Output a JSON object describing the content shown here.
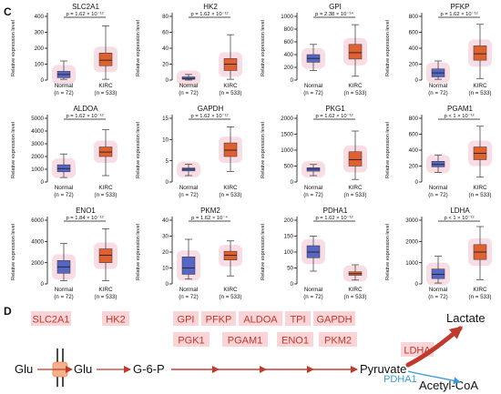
{
  "figure": {
    "panel_c_letter": "C",
    "panel_d_letter": "D"
  },
  "chart_data": [
    {
      "type": "box",
      "title": "SLC2A1",
      "significance": "p = 1.62 × 10⁻¹²",
      "ylabel": "Relative expression level",
      "ylim": [
        0,
        400
      ],
      "yticks": [
        0,
        100,
        200,
        300,
        400
      ],
      "categories": [
        "Normal",
        "KIRC"
      ],
      "n_labels": [
        "(n = 72)",
        "(n = 533)"
      ],
      "boxes": [
        {
          "min": 5,
          "q1": 15,
          "median": 35,
          "q3": 55,
          "max": 120
        },
        {
          "min": 5,
          "q1": 90,
          "median": 125,
          "q3": 170,
          "max": 340
        }
      ]
    },
    {
      "type": "box",
      "title": "HK2",
      "significance": "p = 1.62 × 10⁻¹²",
      "ylabel": "Relative expression level",
      "ylim": [
        0,
        80
      ],
      "yticks": [
        0,
        20,
        40,
        60,
        80
      ],
      "categories": [
        "Normal",
        "KIRC"
      ],
      "n_labels": [
        "(n = 72)",
        "(n = 533)"
      ],
      "boxes": [
        {
          "min": 0,
          "q1": 1,
          "median": 2,
          "q3": 4,
          "max": 7
        },
        {
          "min": 1,
          "q1": 12,
          "median": 20,
          "q3": 27,
          "max": 57
        }
      ]
    },
    {
      "type": "box",
      "title": "GPI",
      "significance": "p = 2.38 × 10⁻¹⁴",
      "ylabel": "Relative expression level",
      "ylim": [
        0,
        1000
      ],
      "yticks": [
        0,
        200,
        400,
        600,
        800,
        1000
      ],
      "categories": [
        "Normal",
        "KIRC"
      ],
      "n_labels": [
        "(n = 72)",
        "(n = 533)"
      ],
      "boxes": [
        {
          "min": 150,
          "q1": 280,
          "median": 340,
          "q3": 400,
          "max": 560
        },
        {
          "min": 60,
          "q1": 330,
          "median": 430,
          "q3": 560,
          "max": 870
        }
      ]
    },
    {
      "type": "box",
      "title": "PFKP",
      "significance": "p = 1.62 × 10⁻¹²",
      "ylabel": "Relative expression level",
      "ylim": [
        0,
        800
      ],
      "yticks": [
        0,
        200,
        400,
        600,
        800
      ],
      "categories": [
        "Normal",
        "KIRC"
      ],
      "n_labels": [
        "(n = 72)",
        "(n = 533)"
      ],
      "boxes": [
        {
          "min": 10,
          "q1": 40,
          "median": 90,
          "q3": 140,
          "max": 240
        },
        {
          "min": 20,
          "q1": 250,
          "median": 330,
          "q3": 430,
          "max": 700
        }
      ]
    },
    {
      "type": "box",
      "title": "ALDOA",
      "significance": "p = 1.62 × 10⁻¹²",
      "ylabel": "Relative expression level",
      "ylim": [
        0,
        5000
      ],
      "yticks": [
        0,
        1000,
        2000,
        3000,
        4000,
        5000
      ],
      "categories": [
        "Normal",
        "KIRC"
      ],
      "n_labels": [
        "(n = 72)",
        "(n = 533)"
      ],
      "boxes": [
        {
          "min": 350,
          "q1": 800,
          "median": 1050,
          "q3": 1350,
          "max": 2200
        },
        {
          "min": 500,
          "q1": 2000,
          "median": 2350,
          "q3": 2750,
          "max": 4100
        }
      ]
    },
    {
      "type": "box",
      "title": "GAPDH",
      "significance": "p = 1.62 × 10⁻¹²",
      "ylabel": "Relative expression level",
      "ylim": [
        0,
        15
      ],
      "yticks": [
        0,
        5,
        10,
        15
      ],
      "categories": [
        "Normal",
        "KIRC"
      ],
      "n_labels": [
        "(n = 72)",
        "(n = 533)"
      ],
      "boxes": [
        {
          "min": 1.5,
          "q1": 2.6,
          "median": 3,
          "q3": 3.3,
          "max": 4.2
        },
        {
          "min": 2.5,
          "q1": 6,
          "median": 7.5,
          "q3": 9.2,
          "max": 13
        }
      ]
    },
    {
      "type": "box",
      "title": "PKG1",
      "significance": "p = 1.62 × 10⁻¹²",
      "ylabel": "Relative expression level",
      "ylim": [
        0,
        2000
      ],
      "yticks": [
        0,
        500,
        1000,
        1500,
        2000
      ],
      "categories": [
        "Normal",
        "KIRC"
      ],
      "n_labels": [
        "(n = 72)",
        "(n = 533)"
      ],
      "boxes": [
        {
          "min": 200,
          "q1": 340,
          "median": 400,
          "q3": 450,
          "max": 550
        },
        {
          "min": 80,
          "q1": 500,
          "median": 700,
          "q3": 950,
          "max": 1600
        }
      ]
    },
    {
      "type": "box",
      "title": "PGAM1",
      "significance": "p < 1 × 10⁻¹²",
      "ylabel": "Relative expression level",
      "ylim": [
        0,
        800
      ],
      "yticks": [
        0,
        200,
        400,
        600,
        800
      ],
      "categories": [
        "Normal",
        "KIRC"
      ],
      "n_labels": [
        "(n = 72)",
        "(n = 533)"
      ],
      "boxes": [
        {
          "min": 120,
          "q1": 190,
          "median": 220,
          "q3": 260,
          "max": 340
        },
        {
          "min": 60,
          "q1": 280,
          "median": 360,
          "q3": 440,
          "max": 700
        }
      ]
    },
    {
      "type": "box",
      "title": "ENO1",
      "significance": "p = 1.84 × 10⁻¹²",
      "ylabel": "Relative expression level",
      "ylim": [
        0,
        6000
      ],
      "yticks": [
        0,
        2000,
        4000,
        6000
      ],
      "categories": [
        "Normal",
        "KIRC"
      ],
      "n_labels": [
        "(n = 72)",
        "(n = 533)"
      ],
      "boxes": [
        {
          "min": 300,
          "q1": 1000,
          "median": 1600,
          "q3": 2200,
          "max": 3800
        },
        {
          "min": 300,
          "q1": 2000,
          "median": 2700,
          "q3": 3300,
          "max": 5200
        }
      ]
    },
    {
      "type": "box",
      "title": "PKM2",
      "significance": "p = 1.62 × 10⁻⁴",
      "ylabel": "Relative expression level",
      "ylim": [
        0,
        40
      ],
      "yticks": [
        0,
        10,
        20,
        30,
        40
      ],
      "categories": [
        "Normal",
        "KIRC"
      ],
      "n_labels": [
        "(n = 72)",
        "(n = 533)"
      ],
      "boxes": [
        {
          "min": 3,
          "q1": 6,
          "median": 10,
          "q3": 17,
          "max": 28
        },
        {
          "min": 5,
          "q1": 15,
          "median": 18,
          "q3": 20.5,
          "max": 27
        }
      ]
    },
    {
      "type": "box",
      "title": "PDHA1",
      "significance": "p = 1.62 × 10⁻¹²",
      "ylabel": "Relative expression level",
      "ylim": [
        0,
        200
      ],
      "yticks": [
        0,
        50,
        100,
        150,
        200
      ],
      "categories": [
        "Normal",
        "KIRC"
      ],
      "n_labels": [
        "(n = 72)",
        "(n = 533)"
      ],
      "boxes": [
        {
          "min": 40,
          "q1": 82,
          "median": 100,
          "q3": 120,
          "max": 150
        },
        {
          "min": 12,
          "q1": 27,
          "median": 32,
          "q3": 38,
          "max": 60
        }
      ]
    },
    {
      "type": "box",
      "title": "LDHA",
      "significance": "p < 1 × 10⁻¹²",
      "ylabel": "Relative expression level",
      "ylim": [
        0,
        3000
      ],
      "yticks": [
        0,
        1000,
        2000,
        3000
      ],
      "categories": [
        "Normal",
        "KIRC"
      ],
      "n_labels": [
        "(n = 72)",
        "(n = 533)"
      ],
      "boxes": [
        {
          "min": 40,
          "q1": 250,
          "median": 450,
          "q3": 700,
          "max": 1300
        },
        {
          "min": 200,
          "q1": 1150,
          "median": 1500,
          "q3": 1850,
          "max": 2700
        }
      ]
    }
  ],
  "pathway": {
    "transporter": "SLC2A1",
    "glu_out": "Glu",
    "glu_in": "Glu",
    "hk": "HK2",
    "g6p": "G-6-P",
    "row1": [
      "GPI",
      "PFKP",
      "ALDOA",
      "TPI",
      "GAPDH"
    ],
    "row2": [
      "PGK1",
      "PGAM1",
      "ENO1",
      "PKM2"
    ],
    "pyruvate": "Pyruvate",
    "ldha": "LDHA",
    "lactate": "Lactate",
    "pdha1": "PDHA1",
    "acetyl_coa": "Acetyl-CoA"
  },
  "colors": {
    "normal_box": "#5566c4",
    "kirc_box": "#e06030",
    "halo": "#f4c6d4",
    "enzyme_bg": "#fad4d6",
    "enzyme_text": "#c0392b",
    "arrow": "#c0392b",
    "pdha1_arrow": "#3a9ad9"
  }
}
